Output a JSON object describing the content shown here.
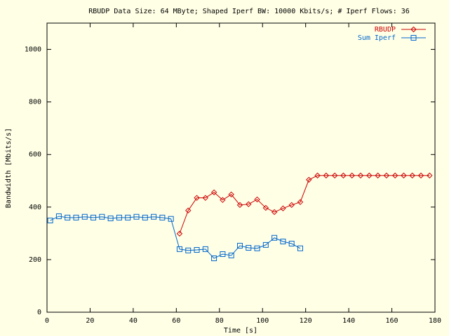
{
  "chart_data": {
    "type": "line",
    "title": "RBUDP Data Size: 64 MByte; Shaped Iperf BW: 10000 Kbits/s; # Iperf Flows: 36",
    "x_label": "Time [s]",
    "y_label": "Bandwidth [Mbits/s]",
    "xlim": [
      0,
      180
    ],
    "xticks": [
      0,
      20,
      40,
      60,
      80,
      100,
      120,
      140,
      160,
      180
    ],
    "ylim": [
      0,
      1100
    ],
    "yticks": [
      0,
      200,
      400,
      600,
      800,
      1000
    ],
    "legend": "top-right",
    "series": [
      {
        "name": "RBUDP",
        "color": "#cc0000",
        "marker": "diamond",
        "x": [
          61.5,
          65.5,
          69.5,
          73.5,
          77.5,
          81.5,
          85.5,
          89.5,
          93.5,
          97.5,
          101.5,
          105.5,
          109.5,
          113.5,
          117.5,
          121.5,
          125.5,
          129.5,
          133.5,
          137.5,
          141.5,
          145.5,
          149.5,
          153.5,
          157.5,
          161.5,
          165.5,
          169.5,
          173.5,
          177.5
        ],
        "values": [
          299,
          387,
          435,
          435,
          456,
          427,
          448,
          408,
          411,
          429,
          397,
          381,
          395,
          408,
          419,
          504,
          520,
          520,
          520,
          520,
          520,
          520,
          520,
          520,
          520,
          520,
          520,
          520,
          520,
          520
        ]
      },
      {
        "name": "Sum Iperf",
        "color": "#0066cc",
        "marker": "square",
        "x": [
          1.5,
          5.5,
          9.5,
          13.5,
          17.5,
          21.5,
          25.5,
          29.5,
          33.5,
          37.5,
          41.5,
          45.5,
          49.5,
          53.5,
          57.5,
          61.5,
          65.5,
          69.5,
          73.5,
          77.5,
          81.5,
          85.5,
          89.5,
          93.5,
          97.5,
          101.5,
          105.5,
          109.5,
          113.5,
          117.5
        ],
        "values": [
          349,
          365,
          360,
          360,
          363,
          360,
          363,
          357,
          360,
          360,
          363,
          360,
          363,
          360,
          355,
          240,
          235,
          237,
          240,
          205,
          221,
          216,
          253,
          245,
          243,
          256,
          283,
          269,
          261,
          243
        ]
      }
    ]
  }
}
